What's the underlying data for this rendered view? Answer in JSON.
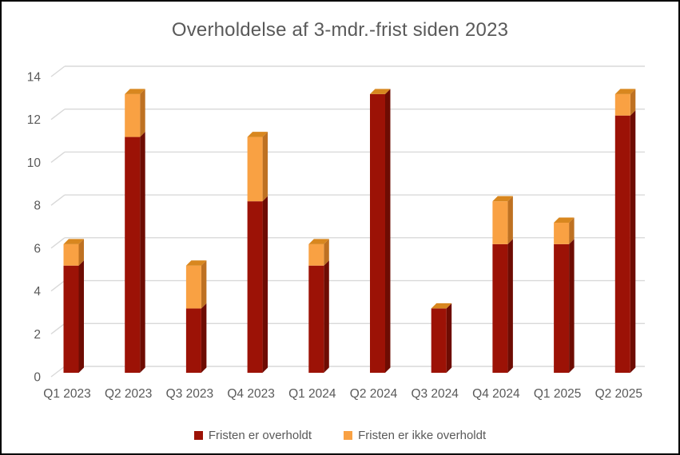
{
  "title": "Overholdelse af 3-mdr.-frist siden 2023",
  "colors": {
    "red_front": "#9C1206",
    "red_side": "#6E0C03",
    "orange_front": "#F9A143",
    "orange_side": "#BE7122",
    "orange_top": "#D8871F",
    "text": "#595959",
    "gridline": "#D9D9D9",
    "background": "#FFFFFF",
    "frame_border": "#000000"
  },
  "chart_data": {
    "type": "bar",
    "subtype": "stacked-3d-column",
    "title": "Overholdelse af 3-mdr.-frist siden 2023",
    "categories": [
      "Q1 2023",
      "Q2 2023",
      "Q3 2023",
      "Q4 2023",
      "Q1 2024",
      "Q2 2024",
      "Q3 2024",
      "Q4 2024",
      "Q1 2025",
      "Q2 2025"
    ],
    "series": [
      {
        "name": "Fristen er overholdt",
        "color": "#9C1206",
        "values": [
          5,
          11,
          3,
          8,
          5,
          13,
          3,
          6,
          6,
          12
        ]
      },
      {
        "name": "Fristen er ikke overholdt",
        "color": "#F9A143",
        "values": [
          1,
          2,
          2,
          3,
          1,
          0,
          0,
          2,
          1,
          1
        ]
      }
    ],
    "totals": [
      6,
      13,
      5,
      11,
      6,
      13,
      3,
      8,
      7,
      13
    ],
    "xlabel": "",
    "ylabel": "",
    "ylim": [
      0,
      14
    ],
    "ytick_step": 2,
    "yticks": [
      0,
      2,
      4,
      6,
      8,
      10,
      12,
      14
    ],
    "grid": true,
    "legend_position": "bottom"
  }
}
